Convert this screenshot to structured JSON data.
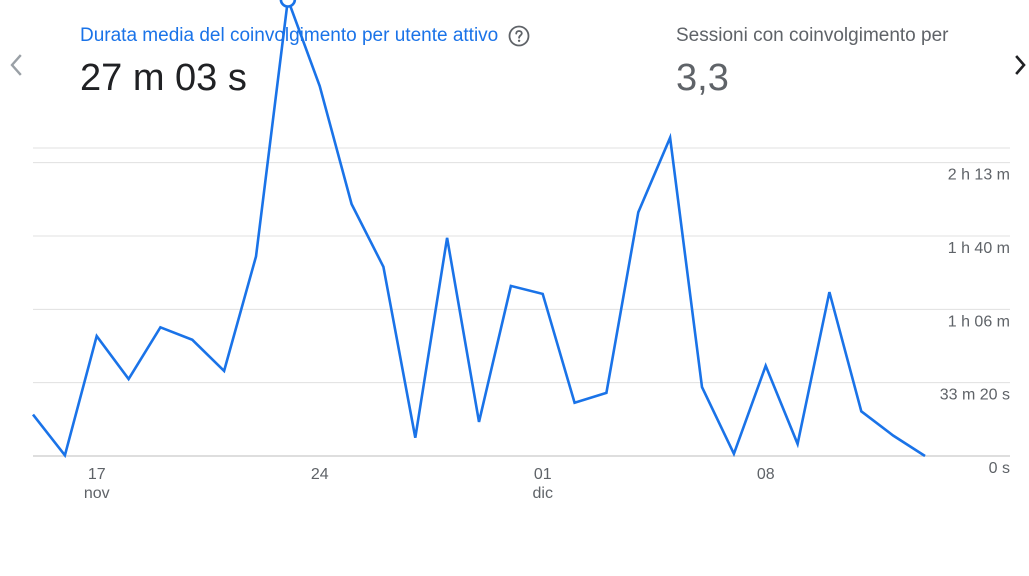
{
  "navigation": {
    "prev_icon": "chevron-left-icon",
    "next_icon": "chevron-right-icon"
  },
  "metrics": [
    {
      "label": "Durata media del coinvolgimento per utente attivo",
      "value": "27 m 03 s",
      "help_icon": "help-circle-icon",
      "color": "#1a73e8"
    },
    {
      "label": "Sessioni con coinvolgimento per",
      "value": "3,3",
      "color": "#5f6368"
    }
  ],
  "chart_data": {
    "type": "line",
    "series": [
      {
        "color": "#1a73e8",
        "x": [
          "2023-11-15",
          "2023-11-16",
          "2023-11-17",
          "2023-11-18",
          "2023-11-19",
          "2023-11-20",
          "2023-11-21",
          "2023-11-22",
          "2023-11-23",
          "2023-11-24",
          "2023-11-25",
          "2023-11-26",
          "2023-11-27",
          "2023-11-28",
          "2023-11-29",
          "2023-11-30",
          "2023-12-01",
          "2023-12-02",
          "2023-12-03",
          "2023-12-04",
          "2023-12-05",
          "2023-12-06",
          "2023-12-07",
          "2023-12-08",
          "2023-12-09",
          "2023-12-10",
          "2023-12-11",
          "2023-12-12",
          "2023-12-13"
        ],
        "values_seconds": [
          1130,
          20,
          3270,
          2100,
          3510,
          3170,
          2320,
          5440,
          12450,
          10090,
          6870,
          5160,
          500,
          5950,
          930,
          4640,
          4420,
          1450,
          1720,
          6650,
          8680,
          1880,
          60,
          2460,
          330,
          4470,
          1220,
          560,
          0
        ],
        "highlighted_index": 8
      }
    ],
    "y_ticks": [
      {
        "value_seconds": 0,
        "label": "0 s"
      },
      {
        "value_seconds": 2000,
        "label": "33 m 20 s"
      },
      {
        "value_seconds": 4000,
        "label": "1 h 06 m"
      },
      {
        "value_seconds": 6000,
        "label": "1 h 40 m"
      },
      {
        "value_seconds": 8000,
        "label": "2 h 13 m"
      }
    ],
    "x_ticks": [
      {
        "date": "2023-11-17",
        "label": "17",
        "sublabel": "nov"
      },
      {
        "date": "2023-11-24",
        "label": "24",
        "sublabel": ""
      },
      {
        "date": "2023-12-01",
        "label": "01",
        "sublabel": "dic"
      },
      {
        "date": "2023-12-08",
        "label": "08",
        "sublabel": ""
      }
    ],
    "ylim_seconds": [
      0,
      8000
    ],
    "grid": true
  }
}
